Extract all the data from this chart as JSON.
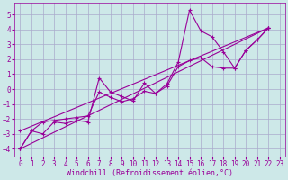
{
  "xlabel": "Windchill (Refroidissement éolien,°C)",
  "bg_color": "#cde8e8",
  "grid_color": "#aaaacc",
  "line_color": "#990099",
  "xlim": [
    -0.5,
    23.5
  ],
  "ylim": [
    -4.5,
    5.8
  ],
  "yticks": [
    -4,
    -3,
    -2,
    -1,
    0,
    1,
    2,
    3,
    4,
    5
  ],
  "xticks": [
    0,
    1,
    2,
    3,
    4,
    5,
    6,
    7,
    8,
    9,
    10,
    11,
    12,
    13,
    14,
    15,
    16,
    17,
    18,
    19,
    20,
    21,
    22,
    23
  ],
  "line1_x": [
    0,
    1,
    2,
    3,
    4,
    5,
    6,
    7,
    8,
    9,
    10,
    11,
    12,
    13,
    14,
    15,
    16,
    17,
    18,
    19,
    20,
    21,
    22
  ],
  "line1_y": [
    -4.0,
    -2.8,
    -3.0,
    -2.2,
    -2.3,
    -2.1,
    -2.2,
    0.75,
    -0.2,
    -0.5,
    -0.8,
    0.4,
    -0.3,
    0.35,
    1.8,
    5.3,
    3.9,
    3.5,
    2.5,
    1.4,
    2.6,
    3.3,
    4.1
  ],
  "line2_x": [
    0,
    1,
    2,
    3,
    4,
    5,
    6,
    7,
    8,
    9,
    10,
    11,
    12,
    13,
    14,
    15,
    16,
    17,
    18,
    19,
    20,
    21,
    22
  ],
  "line2_y": [
    -4.0,
    -2.8,
    -2.2,
    -2.1,
    -2.0,
    -1.9,
    -1.8,
    -0.2,
    -0.55,
    -0.85,
    -0.65,
    -0.15,
    -0.3,
    0.2,
    1.5,
    1.9,
    2.1,
    1.5,
    1.4,
    1.4,
    2.6,
    3.3,
    4.1
  ],
  "line3_x": [
    0,
    22
  ],
  "line3_y": [
    -4.0,
    4.1
  ],
  "line4_x": [
    0,
    22
  ],
  "line4_y": [
    -2.8,
    4.1
  ]
}
